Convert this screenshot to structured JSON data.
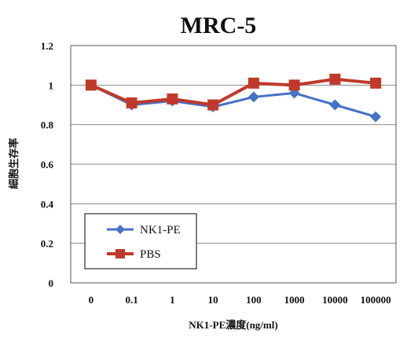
{
  "chart_data": {
    "type": "line",
    "title": "MRC-5",
    "xlabel": "NK1-PE濃度(ng/ml)",
    "ylabel": "細胞生存率",
    "categories": [
      "0",
      "0.1",
      "1",
      "10",
      "100",
      "1000",
      "10000",
      "100000"
    ],
    "ylim": [
      0,
      1.2
    ],
    "yticks": [
      "0",
      "0.2",
      "0.4",
      "0.6",
      "0.8",
      "1",
      "1.2"
    ],
    "grid": true,
    "legend_position": "bottom-left",
    "series": [
      {
        "name": "NK1-PE",
        "color": "#4472c4",
        "marker": "diamond",
        "values": [
          1.0,
          0.9,
          0.92,
          0.89,
          0.94,
          0.96,
          0.9,
          0.84
        ]
      },
      {
        "name": "PBS",
        "color": "#c0392b",
        "marker": "square",
        "values": [
          1.0,
          0.91,
          0.93,
          0.9,
          1.01,
          1.0,
          1.03,
          1.01
        ]
      }
    ]
  }
}
